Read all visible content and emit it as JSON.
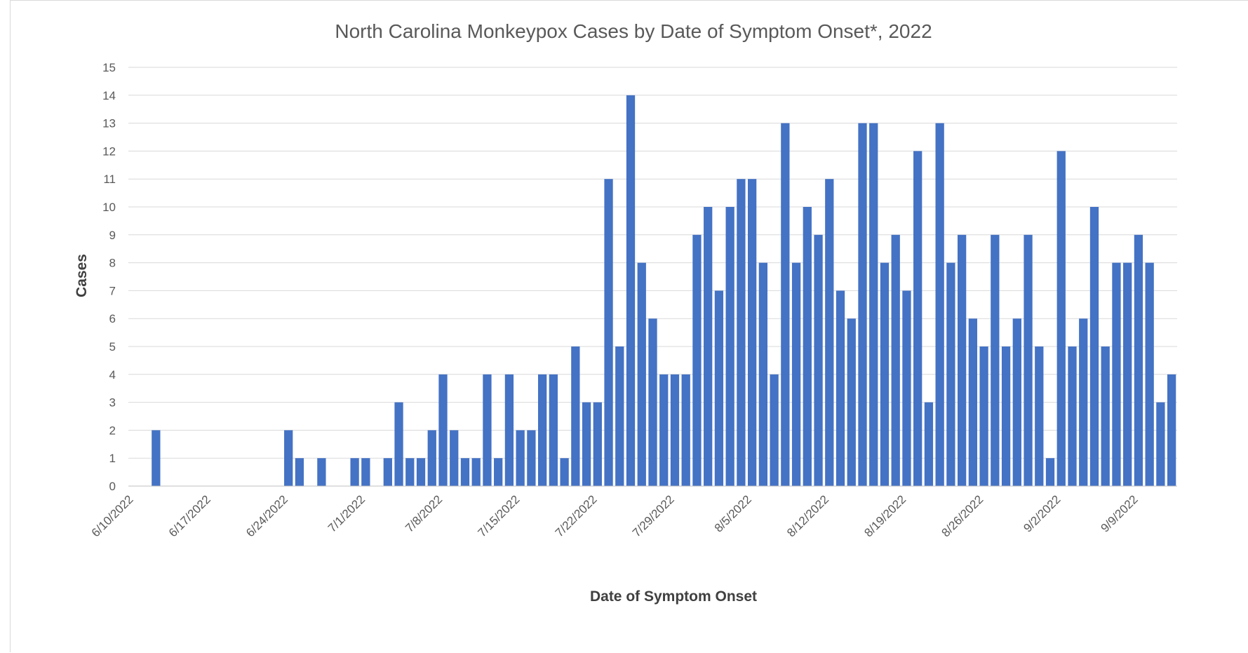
{
  "chart_data": {
    "type": "bar",
    "title": "North Carolina Monkeypox Cases by Date of Symptom Onset*, 2022",
    "xlabel": "Date of Symptom Onset",
    "ylabel": "Cases",
    "ylim": [
      0,
      15
    ],
    "yticks": [
      0,
      1,
      2,
      3,
      4,
      5,
      6,
      7,
      8,
      9,
      10,
      11,
      12,
      13,
      14,
      15
    ],
    "x_start": "6/10/2022",
    "x_end": "9/12/2022",
    "x_tick_labels": [
      "6/10/2022",
      "6/17/2022",
      "6/24/2022",
      "7/1/2022",
      "7/8/2022",
      "7/15/2022",
      "7/22/2022",
      "7/29/2022",
      "8/5/2022",
      "8/12/2022",
      "8/19/2022",
      "8/26/2022",
      "9/2/2022",
      "9/9/2022"
    ],
    "grid": true,
    "legend": "none",
    "bar_color": "#4472c4",
    "values": [
      0,
      0,
      2,
      0,
      0,
      0,
      0,
      0,
      0,
      0,
      0,
      0,
      0,
      0,
      2,
      1,
      0,
      1,
      0,
      0,
      1,
      1,
      0,
      1,
      3,
      1,
      1,
      2,
      4,
      2,
      1,
      1,
      4,
      1,
      4,
      2,
      2,
      4,
      4,
      1,
      5,
      3,
      3,
      11,
      5,
      14,
      8,
      6,
      4,
      4,
      4,
      9,
      10,
      7,
      10,
      11,
      11,
      8,
      4,
      13,
      8,
      10,
      9,
      11,
      7,
      6,
      13,
      13,
      8,
      9,
      7,
      12,
      3,
      13,
      8,
      9,
      6,
      5,
      9,
      5,
      6,
      9,
      5,
      1,
      12,
      5,
      6,
      10,
      5,
      8,
      8,
      9,
      8,
      3,
      4
    ]
  }
}
